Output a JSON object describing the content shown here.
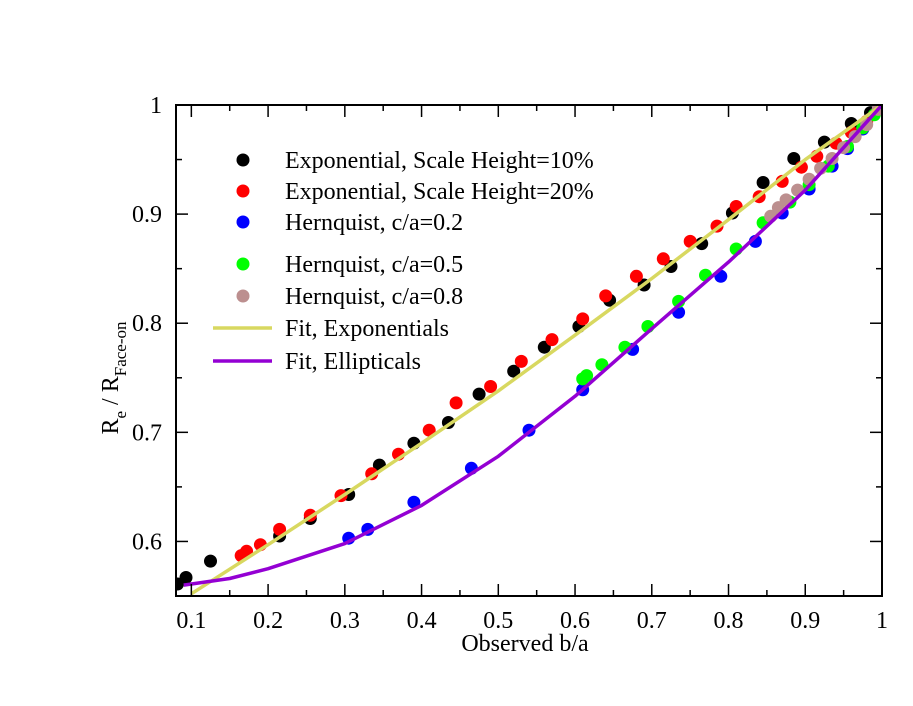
{
  "chart_data": {
    "type": "scatter",
    "xlabel": "Observed b/a",
    "ylabel": {
      "main": "R",
      "sub1": "e",
      "sep": " / R",
      "sub2": "Face-on"
    },
    "xlim": [
      0.08,
      1.0
    ],
    "ylim": [
      0.55,
      1.0
    ],
    "xticks": [
      0.1,
      0.2,
      0.3,
      0.4,
      0.5,
      0.6,
      0.7,
      0.8,
      0.9,
      1
    ],
    "xtick_labels": [
      "0.1",
      "0.2",
      "0.3",
      "0.4",
      "0.5",
      "0.6",
      "0.7",
      "0.8",
      "0.9",
      "1"
    ],
    "yticks": [
      0.6,
      0.7,
      0.8,
      0.9,
      1
    ],
    "ytick_labels": [
      "0.6",
      "0.7",
      "0.8",
      "0.9",
      "1"
    ],
    "grid": false,
    "legend_position": "top-left",
    "series": [
      {
        "name": "Exponential, Scale Height=10%",
        "kind": "scatter",
        "color": "#000000",
        "points": [
          [
            0.082,
            0.561
          ],
          [
            0.093,
            0.567
          ],
          [
            0.125,
            0.582
          ],
          [
            0.215,
            0.605
          ],
          [
            0.255,
            0.621
          ],
          [
            0.305,
            0.643
          ],
          [
            0.345,
            0.67
          ],
          [
            0.39,
            0.69
          ],
          [
            0.435,
            0.709
          ],
          [
            0.475,
            0.735
          ],
          [
            0.52,
            0.756
          ],
          [
            0.56,
            0.778
          ],
          [
            0.605,
            0.797
          ],
          [
            0.645,
            0.821
          ],
          [
            0.69,
            0.835
          ],
          [
            0.725,
            0.852
          ],
          [
            0.765,
            0.873
          ],
          [
            0.805,
            0.901
          ],
          [
            0.845,
            0.929
          ],
          [
            0.885,
            0.951
          ],
          [
            0.925,
            0.966
          ],
          [
            0.96,
            0.983
          ],
          [
            0.985,
            0.993
          ]
        ]
      },
      {
        "name": "Exponential, Scale Height=20%",
        "kind": "scatter",
        "color": "#ff0000",
        "points": [
          [
            0.165,
            0.587
          ],
          [
            0.172,
            0.591
          ],
          [
            0.19,
            0.597
          ],
          [
            0.215,
            0.611
          ],
          [
            0.255,
            0.624
          ],
          [
            0.295,
            0.642
          ],
          [
            0.335,
            0.662
          ],
          [
            0.37,
            0.68
          ],
          [
            0.41,
            0.702
          ],
          [
            0.445,
            0.727
          ],
          [
            0.49,
            0.742
          ],
          [
            0.53,
            0.765
          ],
          [
            0.57,
            0.785
          ],
          [
            0.61,
            0.804
          ],
          [
            0.64,
            0.825
          ],
          [
            0.68,
            0.843
          ],
          [
            0.715,
            0.859
          ],
          [
            0.75,
            0.875
          ],
          [
            0.785,
            0.889
          ],
          [
            0.81,
            0.907
          ],
          [
            0.84,
            0.916
          ],
          [
            0.87,
            0.93
          ],
          [
            0.895,
            0.943
          ],
          [
            0.915,
            0.953
          ],
          [
            0.94,
            0.965
          ],
          [
            0.96,
            0.975
          ],
          [
            0.98,
            0.985
          ],
          [
            1.0,
            1.0
          ]
        ]
      },
      {
        "name": "Hernquist, c/a=0.2",
        "kind": "scatter",
        "color": "#0000ff",
        "points": [
          [
            0.305,
            0.603
          ],
          [
            0.33,
            0.611
          ],
          [
            0.39,
            0.636
          ],
          [
            0.465,
            0.667
          ],
          [
            0.54,
            0.702
          ],
          [
            0.61,
            0.739
          ],
          [
            0.675,
            0.776
          ],
          [
            0.735,
            0.81
          ],
          [
            0.79,
            0.843
          ],
          [
            0.835,
            0.875
          ],
          [
            0.87,
            0.901
          ],
          [
            0.905,
            0.923
          ],
          [
            0.935,
            0.944
          ],
          [
            0.955,
            0.96
          ],
          [
            0.975,
            0.978
          ],
          [
            0.995,
            0.996
          ]
        ]
      },
      {
        "name": "Hernquist, c/a=0.5",
        "kind": "scatter",
        "color": "#00ff00",
        "points": [
          [
            0.61,
            0.749
          ],
          [
            0.615,
            0.752
          ],
          [
            0.635,
            0.762
          ],
          [
            0.665,
            0.778
          ],
          [
            0.695,
            0.797
          ],
          [
            0.735,
            0.82
          ],
          [
            0.77,
            0.844
          ],
          [
            0.81,
            0.868
          ],
          [
            0.845,
            0.892
          ],
          [
            0.88,
            0.911
          ],
          [
            0.905,
            0.927
          ],
          [
            0.93,
            0.944
          ],
          [
            0.955,
            0.962
          ],
          [
            0.975,
            0.979
          ],
          [
            0.99,
            0.991
          ]
        ]
      },
      {
        "name": "Hernquist, c/a=0.8",
        "kind": "scatter",
        "color": "#bc8f8f",
        "points": [
          [
            0.855,
            0.898
          ],
          [
            0.865,
            0.906
          ],
          [
            0.875,
            0.913
          ],
          [
            0.89,
            0.922
          ],
          [
            0.905,
            0.932
          ],
          [
            0.92,
            0.942
          ],
          [
            0.935,
            0.951
          ],
          [
            0.95,
            0.961
          ],
          [
            0.965,
            0.971
          ],
          [
            0.98,
            0.982
          ],
          [
            0.995,
            0.996
          ],
          [
            1.0,
            1.0
          ]
        ]
      },
      {
        "name": "Fit, Exponentials",
        "kind": "line",
        "color": "#d8d860",
        "points": [
          [
            0.1,
            0.552
          ],
          [
            0.2,
            0.597
          ],
          [
            0.3,
            0.643
          ],
          [
            0.4,
            0.69
          ],
          [
            0.5,
            0.738
          ],
          [
            0.6,
            0.789
          ],
          [
            0.7,
            0.841
          ],
          [
            0.8,
            0.895
          ],
          [
            0.9,
            0.95
          ],
          [
            1.0,
            1.0
          ]
        ]
      },
      {
        "name": "Fit, Ellipticals",
        "kind": "line",
        "color": "#9400d3",
        "points": [
          [
            0.09,
            0.56
          ],
          [
            0.15,
            0.566
          ],
          [
            0.2,
            0.575
          ],
          [
            0.3,
            0.598
          ],
          [
            0.4,
            0.633
          ],
          [
            0.5,
            0.678
          ],
          [
            0.6,
            0.733
          ],
          [
            0.7,
            0.795
          ],
          [
            0.8,
            0.856
          ],
          [
            0.9,
            0.922
          ],
          [
            1.0,
            1.0
          ]
        ]
      }
    ]
  }
}
